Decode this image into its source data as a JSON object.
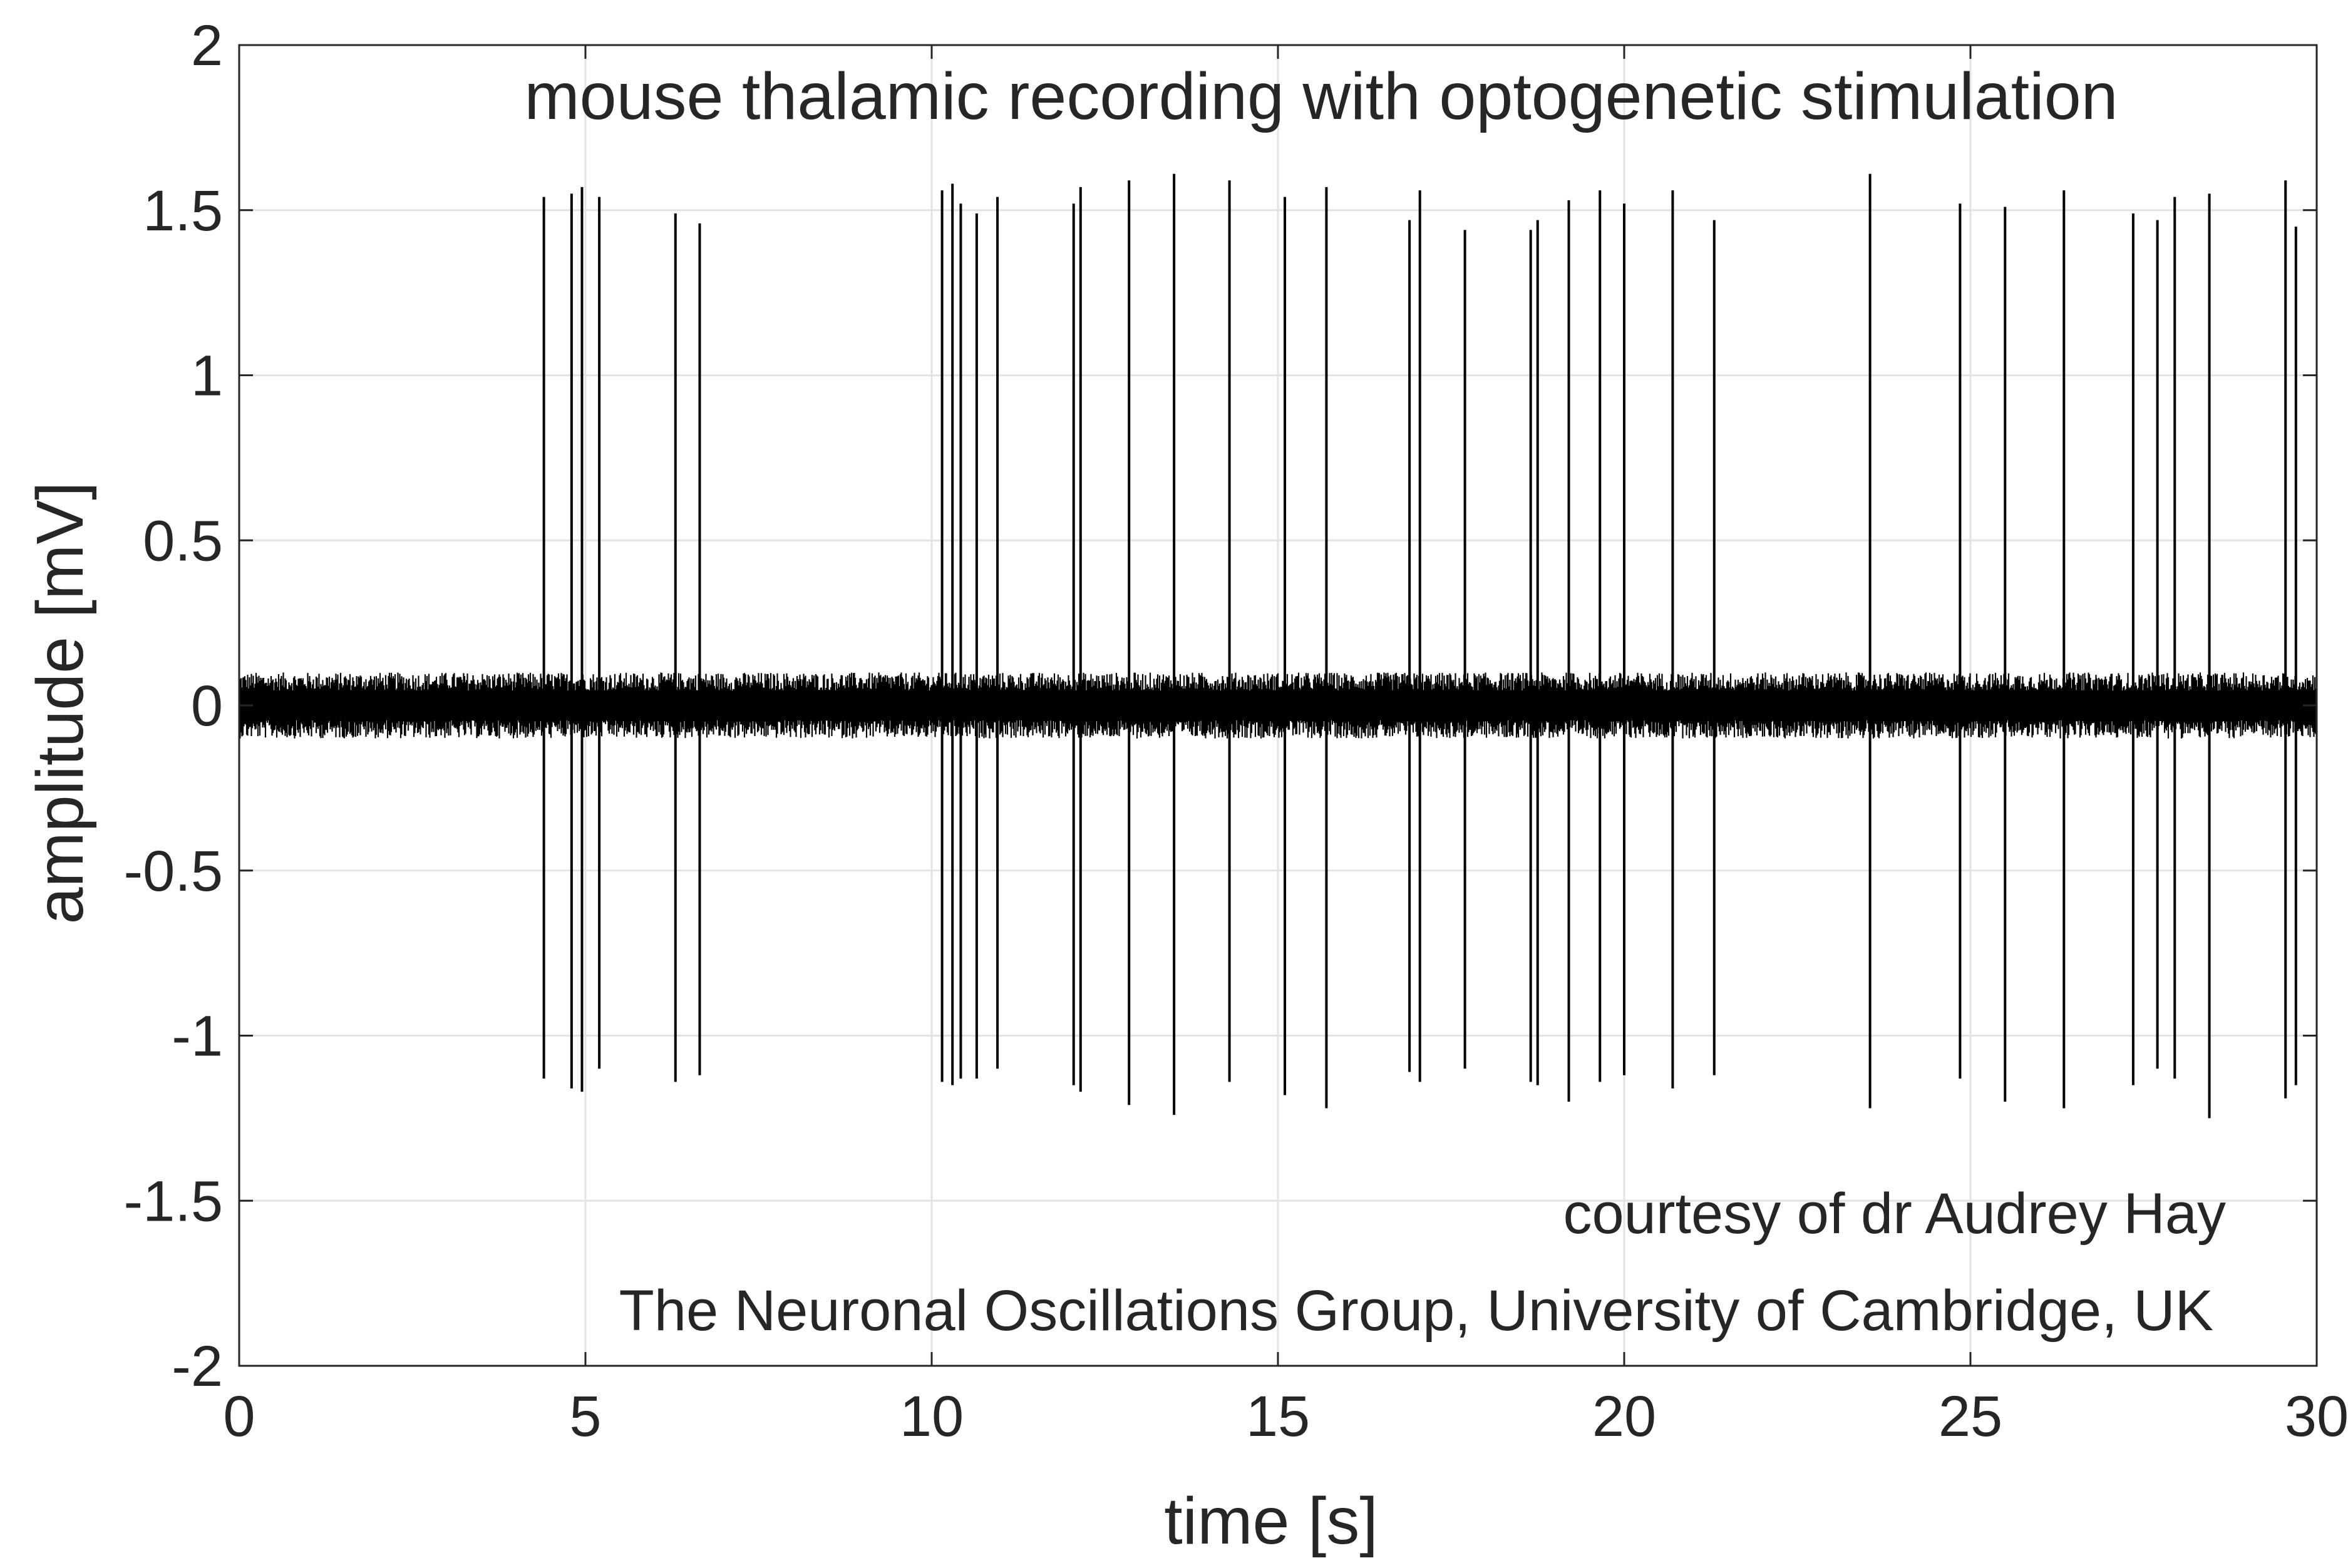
{
  "chart_data": {
    "type": "line",
    "title": "mouse thalamic recording with optogenetic stimulation",
    "xlabel": "time [s]",
    "ylabel": "amplitude [mV]",
    "xlim": [
      0,
      30
    ],
    "ylim": [
      -2,
      2
    ],
    "x_ticks": [
      0,
      5,
      10,
      15,
      20,
      25,
      30
    ],
    "x_tick_labels": [
      "0",
      "5",
      "10",
      "15",
      "20",
      "25",
      "30"
    ],
    "y_ticks": [
      2,
      1.5,
      1,
      0.5,
      0,
      -0.5,
      -1,
      -1.5,
      -2
    ],
    "y_tick_labels": [
      "2",
      "1.5",
      "1",
      "0.5",
      "0",
      "-0.5",
      "-1",
      "-1.5",
      "-2"
    ],
    "grid": true,
    "baseline_noise_amplitude_mv": 0.1,
    "annotations": [
      "courtesy of dr Audrey Hay",
      "The Neuronal Oscillations Group, University of Cambridge, UK"
    ],
    "spikes": [
      {
        "t": 4.4,
        "max": 1.54,
        "min": -1.13
      },
      {
        "t": 4.8,
        "max": 1.55,
        "min": -1.16
      },
      {
        "t": 4.95,
        "max": 1.57,
        "min": -1.17
      },
      {
        "t": 5.2,
        "max": 1.54,
        "min": -1.1
      },
      {
        "t": 6.3,
        "max": 1.49,
        "min": -1.14
      },
      {
        "t": 6.65,
        "max": 1.46,
        "min": -1.12
      },
      {
        "t": 10.15,
        "max": 1.56,
        "min": -1.14
      },
      {
        "t": 10.3,
        "max": 1.58,
        "min": -1.15
      },
      {
        "t": 10.42,
        "max": 1.52,
        "min": -1.13
      },
      {
        "t": 10.65,
        "max": 1.49,
        "min": -1.13
      },
      {
        "t": 10.95,
        "max": 1.54,
        "min": -1.1
      },
      {
        "t": 12.05,
        "max": 1.52,
        "min": -1.15
      },
      {
        "t": 12.15,
        "max": 1.57,
        "min": -1.17
      },
      {
        "t": 12.85,
        "max": 1.59,
        "min": -1.21
      },
      {
        "t": 13.5,
        "max": 1.61,
        "min": -1.24
      },
      {
        "t": 14.3,
        "max": 1.59,
        "min": -1.14
      },
      {
        "t": 15.1,
        "max": 1.54,
        "min": -1.18
      },
      {
        "t": 15.7,
        "max": 1.57,
        "min": -1.22
      },
      {
        "t": 16.9,
        "max": 1.47,
        "min": -1.11
      },
      {
        "t": 17.05,
        "max": 1.56,
        "min": -1.14
      },
      {
        "t": 17.7,
        "max": 1.44,
        "min": -1.1
      },
      {
        "t": 18.65,
        "max": 1.44,
        "min": -1.14
      },
      {
        "t": 18.75,
        "max": 1.47,
        "min": -1.15
      },
      {
        "t": 19.2,
        "max": 1.53,
        "min": -1.2
      },
      {
        "t": 19.65,
        "max": 1.56,
        "min": -1.14
      },
      {
        "t": 20.0,
        "max": 1.52,
        "min": -1.12
      },
      {
        "t": 20.7,
        "max": 1.56,
        "min": -1.16
      },
      {
        "t": 21.3,
        "max": 1.47,
        "min": -1.12
      },
      {
        "t": 23.55,
        "max": 1.61,
        "min": -1.22
      },
      {
        "t": 24.85,
        "max": 1.52,
        "min": -1.13
      },
      {
        "t": 25.5,
        "max": 1.51,
        "min": -1.2
      },
      {
        "t": 26.35,
        "max": 1.56,
        "min": -1.22
      },
      {
        "t": 27.35,
        "max": 1.49,
        "min": -1.15
      },
      {
        "t": 27.7,
        "max": 1.47,
        "min": -1.1
      },
      {
        "t": 27.95,
        "max": 1.54,
        "min": -1.13
      },
      {
        "t": 28.45,
        "max": 1.55,
        "min": -1.25
      },
      {
        "t": 29.55,
        "max": 1.59,
        "min": -1.19
      },
      {
        "t": 29.7,
        "max": 1.45,
        "min": -1.15
      }
    ]
  }
}
